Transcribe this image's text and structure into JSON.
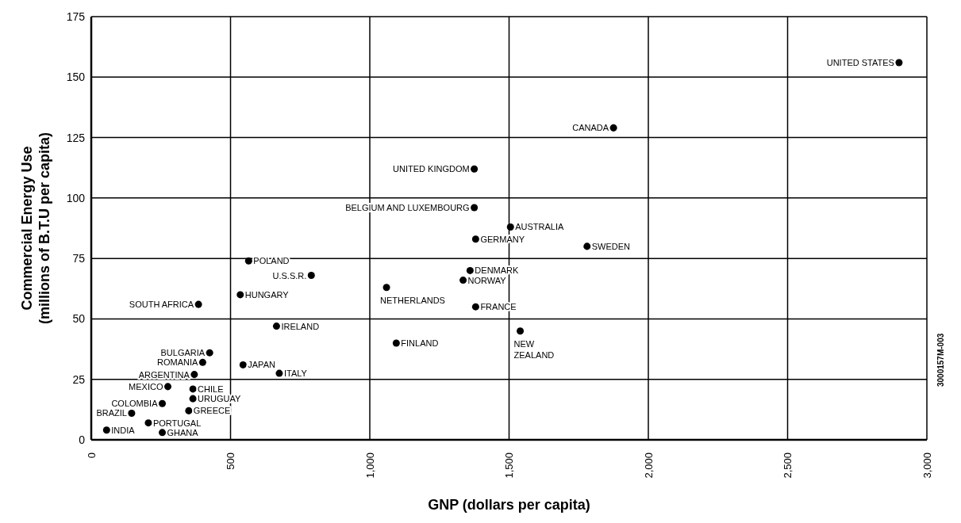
{
  "chart_data": {
    "type": "scatter",
    "xlabel": "GNP (dollars per capita)",
    "ylabel": "Commercial Energy Use\n(millions of B.T.U per capita)",
    "x": [
      2900,
      1875,
      1375,
      1375,
      1505,
      1380,
      1780,
      565,
      790,
      1360,
      1335,
      1060,
      1380,
      535,
      385,
      665,
      1540,
      1095,
      425,
      400,
      545,
      370,
      675,
      275,
      365,
      365,
      255,
      350,
      145,
      205,
      55,
      255
    ],
    "values": [
      156,
      129,
      112,
      96,
      88,
      83,
      80,
      74,
      68,
      70,
      66,
      63,
      55,
      60,
      56,
      47,
      45,
      40,
      36,
      32,
      31,
      27,
      27.5,
      22,
      21,
      17,
      15,
      12,
      11,
      7,
      4,
      3
    ],
    "color": "#000000",
    "marker": "circle",
    "xlim": [
      0,
      3000
    ],
    "xticks": [
      0,
      500,
      {
        "value": 1000,
        "label": "1,000"
      },
      {
        "value": 1500,
        "label": "1,500"
      },
      {
        "value": 2000,
        "label": "2,000"
      },
      {
        "value": 2500,
        "label": "2,500"
      },
      {
        "value": 3000,
        "label": "3,000"
      }
    ],
    "ylim": [
      0,
      175
    ],
    "yticks": [
      0,
      25,
      50,
      75,
      100,
      125,
      150,
      175
    ],
    "grid": true,
    "legend": false,
    "annotations": [
      {
        "text": "UNITED STATES",
        "x": 2900,
        "y": 156
      },
      {
        "text": "CANADA",
        "x": 1875,
        "y": 129
      },
      {
        "text": "UNITED KINGDOM",
        "x": 1375,
        "y": 112
      },
      {
        "text": "BELGIUM AND LUXEMBOURG",
        "x": 1375,
        "y": 96
      },
      {
        "text": "AUSTRALIA",
        "x": 1505,
        "y": 88
      },
      {
        "text": "GERMANY",
        "x": 1380,
        "y": 83
      },
      {
        "text": "SWEDEN",
        "x": 1780,
        "y": 80
      },
      {
        "text": "POLAND",
        "x": 565,
        "y": 74
      },
      {
        "text": "U.S.S.R.",
        "x": 790,
        "y": 68
      },
      {
        "text": "DENMARK",
        "x": 1360,
        "y": 70
      },
      {
        "text": "NORWAY",
        "x": 1335,
        "y": 66
      },
      {
        "text": "NETHERLANDS",
        "x": 1060,
        "y": 63
      },
      {
        "text": "FRANCE",
        "x": 1380,
        "y": 55
      },
      {
        "text": "HUNGARY",
        "x": 535,
        "y": 60
      },
      {
        "text": "SOUTH AFRICA",
        "x": 385,
        "y": 56
      },
      {
        "text": "IRELAND",
        "x": 665,
        "y": 47
      },
      {
        "text": "NEW\nZEALAND",
        "x": 1540,
        "y": 45
      },
      {
        "text": "FINLAND",
        "x": 1095,
        "y": 40
      },
      {
        "text": "BULGARIA",
        "x": 425,
        "y": 36
      },
      {
        "text": "ROMANIA",
        "x": 400,
        "y": 32
      },
      {
        "text": "JAPAN",
        "x": 545,
        "y": 31
      },
      {
        "text": "ARGENTINA",
        "x": 370,
        "y": 27
      },
      {
        "text": "ITALY",
        "x": 675,
        "y": 27.5
      },
      {
        "text": "MEXICO",
        "x": 275,
        "y": 22
      },
      {
        "text": "CHILE",
        "x": 365,
        "y": 21
      },
      {
        "text": "URUGUAY",
        "x": 365,
        "y": 17
      },
      {
        "text": "COLOMBIA",
        "x": 255,
        "y": 15
      },
      {
        "text": "GREECE",
        "x": 350,
        "y": 12
      },
      {
        "text": "BRAZIL",
        "x": 145,
        "y": 11
      },
      {
        "text": "PORTUGAL",
        "x": 205,
        "y": 7
      },
      {
        "text": "INDIA",
        "x": 55,
        "y": 4
      },
      {
        "text": "GHANA",
        "x": 255,
        "y": 3
      },
      "3000157M-003"
    ]
  }
}
